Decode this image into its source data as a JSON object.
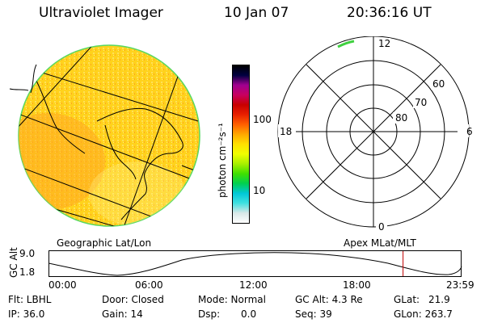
{
  "header": {
    "instrument": "Ultraviolet Imager",
    "date": "10 Jan 07",
    "time": "20:36:16 UT"
  },
  "colorbar": {
    "unit_label": "photon cm⁻²s⁻¹",
    "ticks": [
      "100",
      "10"
    ],
    "colors": [
      "#ffffff",
      "#d8e8e8",
      "#40e0e0",
      "#00c8d8",
      "#00d050",
      "#40e000",
      "#a8f000",
      "#f0ff00",
      "#ffe000",
      "#ffa800",
      "#ff6000",
      "#e82000",
      "#c80000",
      "#c80060",
      "#a00090",
      "#000040",
      "#000000"
    ]
  },
  "globe": {
    "label": "Geographic Lat/Lon",
    "disk_color": "#ffd21c",
    "limb_color": "#58d860"
  },
  "polar": {
    "label": "Apex MLat/MLT",
    "mlt_labels": {
      "top": "12",
      "left": "18",
      "right": "6",
      "bottom": "0"
    },
    "lat_labels": [
      "60",
      "70",
      "80"
    ]
  },
  "timeline": {
    "ylabel": "GC Alt",
    "ytick_top": "9.0",
    "ytick_bottom": "1.8",
    "xticks": [
      "00:00",
      "06:00",
      "12:00",
      "18:00",
      "23:59"
    ],
    "marker_color": "#c00000",
    "marker_time_hours": 20.6
  },
  "status": {
    "flt": "Flt: LBHL",
    "ip": "IP: 36.0",
    "door": "Door: Closed",
    "gain": "Gain: 14",
    "mode": "Mode: Normal",
    "dsp_label": "Dsp:",
    "dsp_value": "0.0",
    "gcalt": "GC Alt: 4.3 Re",
    "seq": "Seq: 39",
    "glat_label": "GLat:",
    "glat_value": "21.9",
    "glon": "GLon: 263.7"
  }
}
